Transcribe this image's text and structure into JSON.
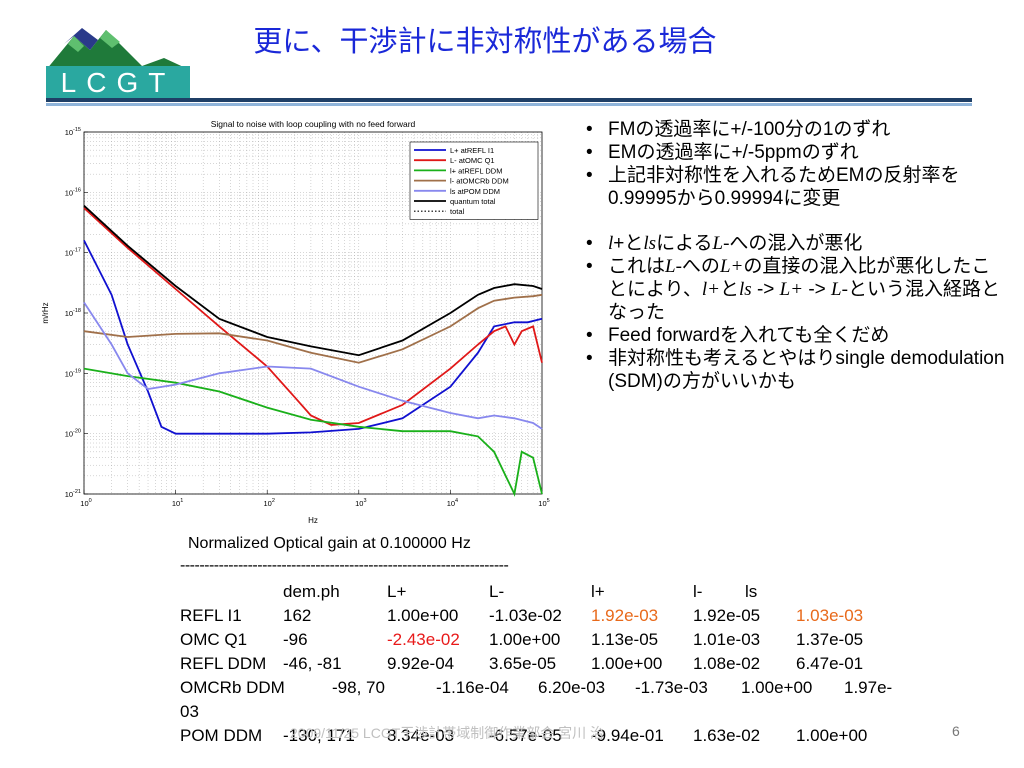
{
  "slide_title": "更に、干渉計に非対称性がある場合",
  "logo_text": "LCGT",
  "bullets": [
    {
      "text": "FMの透過率に+/-100分の1のずれ"
    },
    {
      "text": "EMの透過率に+/-5ppmのずれ"
    },
    {
      "text": "上記非対称性を入れるためEMの反射率を0.99995から0.99994に変更"
    },
    {
      "parts": [
        "l",
        "+と",
        "ls",
        "による",
        "L-",
        "への混入が悪化"
      ]
    },
    {
      "parts": [
        "これは",
        "L-",
        "への",
        "L+",
        "の直接の混入比が悪化したことにより、",
        "l+",
        "と",
        "ls",
        " -> ",
        "L+",
        " -> ",
        "L-",
        "という混入経路となった"
      ]
    },
    {
      "text": "Feed forwardを入れても全くだめ"
    },
    {
      "text": "非対称性も考えるとやはりsingle demodulation (SDM)の方がいいかも"
    }
  ],
  "chart_data": {
    "type": "line",
    "title": "Signal to noise with loop coupling with no feed forward",
    "xlabel": "Hz",
    "ylabel": "m/rHz",
    "xscale": "log",
    "yscale": "log",
    "xlim": [
      1,
      100000
    ],
    "ylim": [
      1e-21,
      1e-15
    ],
    "x_ticks": [
      "10^0",
      "10^1",
      "10^2",
      "10^3",
      "10^4",
      "10^5"
    ],
    "y_ticks": [
      "10^-21",
      "10^-20",
      "10^-19",
      "10^-18",
      "10^-17",
      "10^-16",
      "10^-15"
    ],
    "grid": true,
    "legend_position": "top-right",
    "series": [
      {
        "name": "L+ atREFL I1",
        "color": "#1010d0",
        "points": [
          [
            1,
            1.6e-17
          ],
          [
            2,
            2e-18
          ],
          [
            3,
            3e-19
          ],
          [
            5,
            5e-20
          ],
          [
            7,
            1.3e-20
          ],
          [
            10,
            1e-20
          ],
          [
            30,
            1e-20
          ],
          [
            100,
            1e-20
          ],
          [
            300,
            1.05e-20
          ],
          [
            1000,
            1.2e-20
          ],
          [
            3000,
            1.8e-20
          ],
          [
            10000,
            6e-20
          ],
          [
            20000,
            2.2e-19
          ],
          [
            30000,
            6e-19
          ],
          [
            50000,
            7e-19
          ],
          [
            70000,
            7e-19
          ],
          [
            100000,
            8e-19
          ]
        ]
      },
      {
        "name": "L- atOMC Q1",
        "color": "#e01818",
        "points": [
          [
            1,
            5.5e-17
          ],
          [
            3,
            1.2e-17
          ],
          [
            10,
            2.5e-18
          ],
          [
            30,
            6e-19
          ],
          [
            100,
            1.3e-19
          ],
          [
            200,
            4e-20
          ],
          [
            300,
            2e-20
          ],
          [
            500,
            1.4e-20
          ],
          [
            1000,
            1.5e-20
          ],
          [
            3000,
            3e-20
          ],
          [
            10000,
            1.2e-19
          ],
          [
            20000,
            3e-19
          ],
          [
            30000,
            5e-19
          ],
          [
            40000,
            6e-19
          ],
          [
            50000,
            3e-19
          ],
          [
            60000,
            5e-19
          ],
          [
            80000,
            6e-19
          ],
          [
            100000,
            1.5e-19
          ]
        ]
      },
      {
        "name": "l+ atREFL DDM",
        "color": "#1ab01a",
        "points": [
          [
            1,
            1.2e-19
          ],
          [
            3,
            9e-20
          ],
          [
            10,
            7e-20
          ],
          [
            30,
            5e-20
          ],
          [
            100,
            2.7e-20
          ],
          [
            300,
            1.7e-20
          ],
          [
            1000,
            1.3e-20
          ],
          [
            3000,
            1.1e-20
          ],
          [
            10000,
            1.1e-20
          ],
          [
            20000,
            9e-21
          ],
          [
            30000,
            5e-21
          ],
          [
            50000,
            1e-21
          ],
          [
            60000,
            5e-21
          ],
          [
            80000,
            4e-21
          ],
          [
            100000,
            1e-21
          ]
        ]
      },
      {
        "name": "l- atOMCRb DDM",
        "color": "#a0704a",
        "points": [
          [
            1,
            5e-19
          ],
          [
            3,
            4e-19
          ],
          [
            10,
            4.5e-19
          ],
          [
            30,
            4.6e-19
          ],
          [
            100,
            3.5e-19
          ],
          [
            300,
            2.2e-19
          ],
          [
            1000,
            1.5e-19
          ],
          [
            3000,
            2.5e-19
          ],
          [
            10000,
            6e-19
          ],
          [
            20000,
            1.2e-18
          ],
          [
            30000,
            1.6e-18
          ],
          [
            50000,
            1.8e-18
          ],
          [
            80000,
            1.9e-18
          ],
          [
            100000,
            2e-18
          ]
        ]
      },
      {
        "name": "ls atPOM DDM",
        "color": "#8888ee",
        "points": [
          [
            1,
            1.5e-18
          ],
          [
            2,
            3e-19
          ],
          [
            3,
            1e-19
          ],
          [
            5,
            5.5e-20
          ],
          [
            10,
            6.5e-20
          ],
          [
            30,
            1e-19
          ],
          [
            100,
            1.3e-19
          ],
          [
            300,
            1.2e-19
          ],
          [
            1000,
            6e-20
          ],
          [
            3000,
            3.5e-20
          ],
          [
            10000,
            2.2e-20
          ],
          [
            20000,
            1.8e-20
          ],
          [
            30000,
            2e-20
          ],
          [
            50000,
            1.8e-20
          ],
          [
            80000,
            1.5e-20
          ],
          [
            100000,
            1.2e-20
          ]
        ]
      },
      {
        "name": "quantum total",
        "color": "#000000",
        "points": [
          [
            1,
            6e-17
          ],
          [
            3,
            1.3e-17
          ],
          [
            10,
            2.8e-18
          ],
          [
            30,
            8e-19
          ],
          [
            100,
            4e-19
          ],
          [
            300,
            2.8e-19
          ],
          [
            1000,
            2e-19
          ],
          [
            3000,
            3.5e-19
          ],
          [
            10000,
            1e-18
          ],
          [
            20000,
            2e-18
          ],
          [
            30000,
            2.6e-18
          ],
          [
            50000,
            3e-18
          ],
          [
            80000,
            2.8e-18
          ],
          [
            100000,
            2.5e-18
          ]
        ]
      },
      {
        "name": "total",
        "color": "#000000",
        "dotted": true,
        "points": [
          [
            1,
            6e-17
          ],
          [
            3,
            1.3e-17
          ],
          [
            10,
            2.8e-18
          ],
          [
            30,
            8e-19
          ],
          [
            100,
            4e-19
          ],
          [
            300,
            2.8e-19
          ],
          [
            1000,
            2e-19
          ],
          [
            3000,
            3.5e-19
          ],
          [
            10000,
            1e-18
          ],
          [
            20000,
            2e-18
          ],
          [
            30000,
            2.6e-18
          ],
          [
            50000,
            3e-18
          ],
          [
            80000,
            2.8e-18
          ],
          [
            100000,
            2.5e-18
          ]
        ]
      }
    ]
  },
  "table": {
    "caption": "Normalized Optical gain at 0.100000 Hz",
    "rule": "--------------------------------------------------------------------",
    "header": [
      "dem.ph",
      "L+",
      "L-",
      "l+",
      "l-",
      "ls"
    ],
    "rows": [
      {
        "label": "REFL I1",
        "cells": [
          "162",
          "1.00e+00",
          "-1.03e-02",
          "1.92e-03",
          "1.92e-05",
          "1.03e-03"
        ]
      },
      {
        "label": "OMC Q1",
        "cells": [
          "-96",
          "-2.43e-02",
          "1.00e+00",
          "1.13e-05",
          "1.01e-03",
          "1.37e-05"
        ]
      },
      {
        "label": "REFL DDM",
        "cells": [
          "-46, -81",
          "9.92e-04",
          "3.65e-05",
          "1.00e+00",
          "1.08e-02",
          "6.47e-01"
        ]
      },
      {
        "label": "OMCRb DDM",
        "cells": [
          "-98, 70",
          "-1.16e-04",
          "6.20e-03",
          "-1.73e-03",
          "1.00e+00",
          "1.97e-"
        ]
      },
      {
        "label": "03",
        "cells": []
      },
      {
        "label": "POM DDM",
        "cells": [
          "-130, 171",
          "8.34e-03",
          "-6.57e-05",
          "-9.94e-01",
          "1.63e-02",
          "1.00e+00"
        ]
      }
    ]
  },
  "footer": "2009/11/25 LCGT干渉計帯域制御作業部会 宮川 治",
  "page_number": "6"
}
